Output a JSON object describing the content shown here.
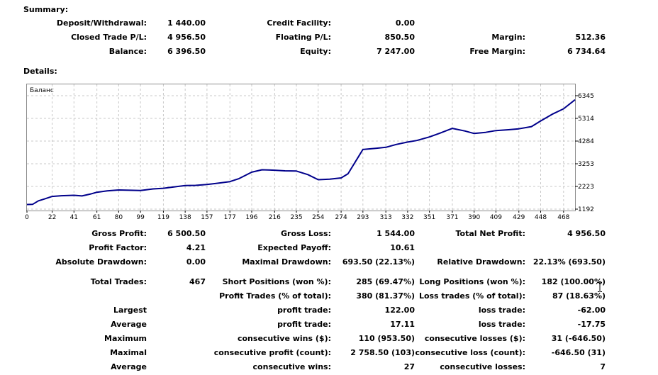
{
  "summary": {
    "title": "Summary:",
    "deposit_label": "Deposit/Withdrawal:",
    "deposit_value": "1 440.00",
    "credit_label": "Credit Facility:",
    "credit_value": "0.00",
    "closed_pl_label": "Closed Trade P/L:",
    "closed_pl_value": "4 956.50",
    "floating_pl_label": "Floating P/L:",
    "floating_pl_value": "850.50",
    "margin_label": "Margin:",
    "margin_value": "512.36",
    "balance_label": "Balance:",
    "balance_value": "6 396.50",
    "equity_label": "Equity:",
    "equity_value": "7 247.00",
    "free_margin_label": "Free Margin:",
    "free_margin_value": "6 734.64"
  },
  "details": {
    "title": "Details:"
  },
  "chart_data": {
    "type": "line",
    "title": "Баланс",
    "x_ticks": [
      "0",
      "22",
      "41",
      "61",
      "80",
      "99",
      "119",
      "138",
      "157",
      "177",
      "196",
      "216",
      "235",
      "254",
      "274",
      "293",
      "313",
      "332",
      "351",
      "371",
      "390",
      "409",
      "429",
      "448",
      "468"
    ],
    "y_ticks": [
      "6345",
      "5314",
      "4284",
      "3253",
      "2223",
      "1192"
    ],
    "ylim": [
      1192,
      6345
    ],
    "xlim": [
      0,
      478
    ],
    "grid": true,
    "line_color": "#00008b",
    "series": [
      {
        "x": [
          0,
          5,
          10,
          15,
          22,
          30,
          41,
          48,
          55,
          61,
          70,
          80,
          90,
          99,
          110,
          119,
          128,
          138,
          147,
          157,
          165,
          177,
          185,
          196,
          205,
          216,
          225,
          235,
          245,
          254,
          264,
          274,
          280,
          293,
          305,
          313,
          322,
          332,
          340,
          351,
          360,
          371,
          382,
          390,
          400,
          409,
          420,
          429,
          440,
          448,
          458,
          468,
          478
        ],
        "y": [
          1400,
          1410,
          1570,
          1650,
          1770,
          1800,
          1820,
          1790,
          1870,
          1960,
          2020,
          2060,
          2050,
          2040,
          2110,
          2140,
          2200,
          2260,
          2270,
          2310,
          2360,
          2440,
          2580,
          2870,
          2980,
          2960,
          2930,
          2920,
          2760,
          2530,
          2550,
          2610,
          2800,
          3900,
          3960,
          4000,
          4130,
          4240,
          4310,
          4470,
          4640,
          4860,
          4740,
          4630,
          4680,
          4760,
          4800,
          4840,
          4940,
          5200,
          5500,
          5750,
          6160
        ]
      }
    ]
  },
  "stats": {
    "gross_profit_label": "Gross Profit:",
    "gross_profit_value": "6 500.50",
    "gross_loss_label": "Gross Loss:",
    "gross_loss_value": "1 544.00",
    "total_net_profit_label": "Total Net Profit:",
    "total_net_profit_value": "4 956.50",
    "profit_factor_label": "Profit Factor:",
    "profit_factor_value": "4.21",
    "expected_payoff_label": "Expected Payoff:",
    "expected_payoff_value": "10.61",
    "absolute_drawdown_label": "Absolute Drawdown:",
    "absolute_drawdown_value": "0.00",
    "maximal_drawdown_label": "Maximal Drawdown:",
    "maximal_drawdown_value": "693.50 (22.13%)",
    "relative_drawdown_label": "Relative Drawdown:",
    "relative_drawdown_value": "22.13% (693.50)",
    "total_trades_label": "Total Trades:",
    "total_trades_value": "467",
    "short_positions_label": "Short Positions (won %):",
    "short_positions_value": "285 (69.47%)",
    "long_positions_label": "Long Positions (won %):",
    "long_positions_value": "182 (100.00%)",
    "profit_trades_label": "Profit Trades (% of total):",
    "profit_trades_value": "380 (81.37%)",
    "loss_trades_label": "Loss trades (% of total):",
    "loss_trades_value": "87 (18.63%)",
    "largest_label": "Largest",
    "largest_profit_label": "profit trade:",
    "largest_profit_value": "122.00",
    "largest_loss_label": "loss trade:",
    "largest_loss_value": "-62.00",
    "average_label": "Average",
    "average_profit_label": "profit trade:",
    "average_profit_value": "17.11",
    "average_loss_label": "loss trade:",
    "average_loss_value": "-17.75",
    "maximum_label": "Maximum",
    "max_cons_wins_label": "consecutive wins ($):",
    "max_cons_wins_value": "110 (953.50)",
    "max_cons_losses_label": "consecutive losses ($):",
    "max_cons_losses_value": "31 (-646.50)",
    "maximal_label": "Maximal",
    "maximal_cons_profit_label": "consecutive profit (count):",
    "maximal_cons_profit_value": "2 758.50 (103)",
    "maximal_cons_loss_label": "consecutive loss (count):",
    "maximal_cons_loss_value": "-646.50 (31)",
    "average2_label": "Average",
    "avg_cons_wins_label": "consecutive wins:",
    "avg_cons_wins_value": "27",
    "avg_cons_losses_label": "consecutive losses:",
    "avg_cons_losses_value": "7"
  }
}
